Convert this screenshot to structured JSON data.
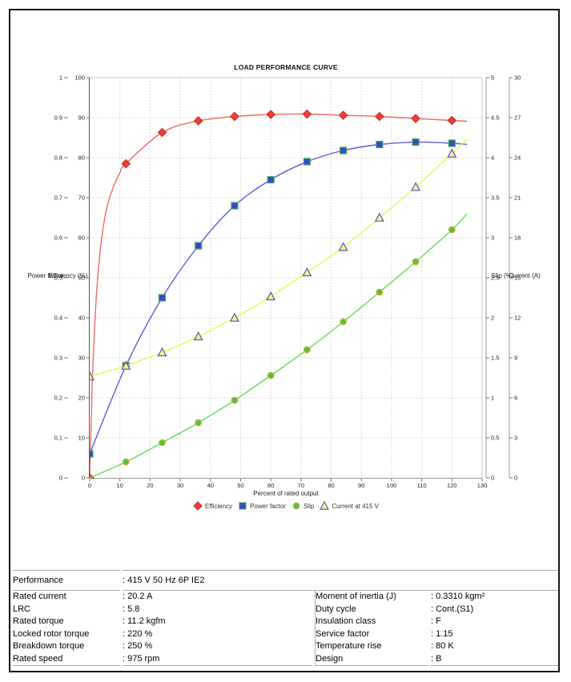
{
  "chart_data": {
    "type": "line",
    "title": "LOAD PERFORMANCE CURVE",
    "xlabel": "Percent of rated output",
    "xlim": [
      0,
      130
    ],
    "x_tick_step": 10,
    "grid": true,
    "legend_position": "bottom",
    "axes": {
      "power_factor": {
        "label": "Power factor",
        "side": "left",
        "min": 0,
        "max": 1,
        "tick_step": 0.1
      },
      "efficiency": {
        "label": "Efficiency (%)",
        "side": "left",
        "min": 0,
        "max": 100,
        "tick_step": 10
      },
      "slip": {
        "label": "Slip (%)",
        "side": "right",
        "min": 0,
        "max": 5,
        "tick_step": 0.5
      },
      "current": {
        "label": "Current (A)",
        "side": "right",
        "min": 0,
        "max": 30,
        "tick_step": 3
      }
    },
    "series": [
      {
        "name": "Efficiency",
        "axis": "efficiency",
        "marker": "diamond",
        "x": [
          0,
          12,
          24,
          36,
          48,
          60,
          72,
          84,
          96,
          108,
          120
        ],
        "y": [
          0,
          78.5,
          86.3,
          89.2,
          90.3,
          90.8,
          90.9,
          90.6,
          90.3,
          89.8,
          89.3
        ],
        "curve_pre": [
          [
            0.5,
            14
          ],
          [
            1,
            27
          ],
          [
            2,
            43
          ],
          [
            3,
            53
          ],
          [
            4,
            60
          ],
          [
            5,
            65
          ],
          [
            6,
            68.5
          ],
          [
            8,
            73
          ],
          [
            10,
            76.2
          ]
        ],
        "curve_post": [
          [
            125,
            89.1
          ]
        ],
        "line_color": "#ee6a62",
        "marker_fill": "#f03c36",
        "marker_edge": "#c8302b"
      },
      {
        "name": "Power factor",
        "axis": "power_factor",
        "marker": "square",
        "x": [
          0,
          12,
          24,
          36,
          48,
          60,
          72,
          84,
          96,
          108,
          120
        ],
        "y": [
          0.06,
          0.28,
          0.45,
          0.58,
          0.68,
          0.745,
          0.79,
          0.818,
          0.833,
          0.839,
          0.836
        ],
        "curve_post": [
          [
            125,
            0.833
          ]
        ],
        "line_color": "#5b5bdc",
        "marker_fill": "#3a46d4",
        "marker_edge": "#3fae4a"
      },
      {
        "name": "Slip",
        "axis": "slip",
        "marker": "circle",
        "x": [
          12,
          24,
          36,
          48,
          60,
          72,
          84,
          96,
          108,
          120
        ],
        "y": [
          0.2,
          0.44,
          0.69,
          0.97,
          1.28,
          1.6,
          1.95,
          2.32,
          2.7,
          3.1
        ],
        "curve_pre": [
          [
            0,
            0
          ]
        ],
        "curve_post": [
          [
            125,
            3.3
          ]
        ],
        "line_color": "#62de57",
        "marker_fill": "#41cc3e",
        "marker_edge": "#e5a33b"
      },
      {
        "name": "Current at 415 V",
        "axis": "current",
        "marker": "triangle",
        "x": [
          0,
          12,
          24,
          36,
          48,
          60,
          72,
          84,
          96,
          108,
          120
        ],
        "y": [
          7.6,
          8.4,
          9.4,
          10.6,
          12.0,
          13.6,
          15.4,
          17.3,
          19.5,
          21.8,
          24.3
        ],
        "curve_post": [
          [
            125,
            25.4
          ]
        ],
        "line_color": "#f0f055",
        "marker_fill": "#f6f67d",
        "marker_edge": "#5353cc"
      }
    ]
  },
  "table": {
    "performance_label": "Performance",
    "performance_value": ": 415 V 50 Hz 6P IE2",
    "rows": [
      {
        "l1": "Rated current",
        "v1": ": 20.2 A",
        "l2": "Moment of inertia (J)",
        "v2": ": 0.3310 kgm²"
      },
      {
        "l1": "LRC",
        "v1": ": 5.8",
        "l2": "Duty cycle",
        "v2": ": Cont.(S1)"
      },
      {
        "l1": "Rated torque",
        "v1": ": 11.2 kgfm",
        "l2": "Insulation class",
        "v2": ": F"
      },
      {
        "l1": "Locked rotor torque",
        "v1": ": 220 %",
        "l2": "Service factor",
        "v2": ": 1.15"
      },
      {
        "l1": "Breakdown torque",
        "v1": ": 250 %",
        "l2": "Temperature rise",
        "v2": ": 80 K"
      },
      {
        "l1": "Rated speed",
        "v1": ": 975 rpm",
        "l2": "Design",
        "v2": ": B"
      }
    ]
  }
}
